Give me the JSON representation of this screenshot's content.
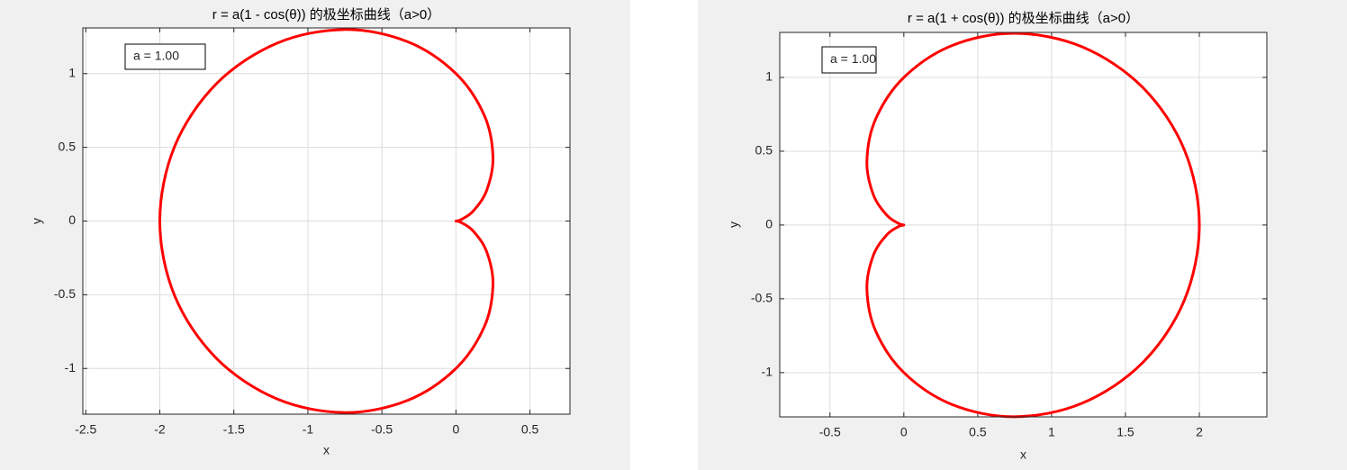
{
  "chart_data": [
    {
      "type": "line",
      "title": "r = a(1 - cos(θ)) 的极坐标曲线（a>0）",
      "x_label": "x",
      "y_label": "y",
      "annotation": "a = 1.00",
      "xlim": [
        -2.52,
        0.77
      ],
      "ylim": [
        -1.31,
        1.31
      ],
      "xticks": [
        -2.5,
        -2,
        -1.5,
        -1,
        -0.5,
        0,
        0.5
      ],
      "yticks": [
        -1,
        -0.5,
        0,
        0.5,
        1
      ],
      "grid": true,
      "x": [
        0,
        0.0329,
        0.116,
        0.2071,
        0.25,
        0.1918,
        0,
        -0.3258,
        -0.75,
        -1.2071,
        -1.616,
        -1.8989,
        -2,
        -1.8989,
        -1.616,
        -1.2071,
        -0.75,
        -0.3258,
        0,
        0.1918,
        0.25,
        0.2071,
        0.116,
        0.0329,
        0
      ],
      "series": [
        {
          "color": "#ff0000",
          "values": [
            0,
            0.0088,
            0.067,
            0.2071,
            0.433,
            0.7159,
            1,
            1.2159,
            1.299,
            1.2071,
            0.933,
            0.5088,
            0,
            -0.5088,
            -0.933,
            -1.2071,
            -1.299,
            -1.2159,
            -1,
            -0.7159,
            -0.433,
            -0.2071,
            -0.067,
            -0.0088,
            0
          ]
        }
      ]
    },
    {
      "type": "line",
      "title": "r = a(1 + cos(θ)) 的极坐标曲线（a>0）",
      "x_label": "x",
      "y_label": "y",
      "annotation": "a = 1.00",
      "xlim": [
        -0.84,
        2.457
      ],
      "ylim": [
        -1.3,
        1.305
      ],
      "xticks": [
        -0.5,
        0,
        0.5,
        1,
        1.5,
        2
      ],
      "yticks": [
        -1,
        -0.5,
        0,
        0.5,
        1
      ],
      "grid": true,
      "x": [
        2,
        1.8989,
        1.616,
        1.2071,
        0.75,
        0.3258,
        0,
        -0.1918,
        -0.25,
        -0.2071,
        -0.116,
        -0.0329,
        0,
        -0.0329,
        -0.116,
        -0.2071,
        -0.25,
        -0.1918,
        0,
        0.3258,
        0.75,
        1.2071,
        1.616,
        1.8989,
        2
      ],
      "series": [
        {
          "color": "#ff0000",
          "values": [
            0,
            0.5088,
            0.933,
            1.2071,
            1.299,
            1.2159,
            1,
            0.7159,
            0.433,
            0.2071,
            0.067,
            0.0088,
            0,
            -0.0088,
            -0.067,
            -0.2071,
            -0.433,
            -0.7159,
            -1,
            -1.2159,
            -1.299,
            -1.2071,
            -0.933,
            -0.5088,
            0
          ]
        }
      ]
    }
  ]
}
